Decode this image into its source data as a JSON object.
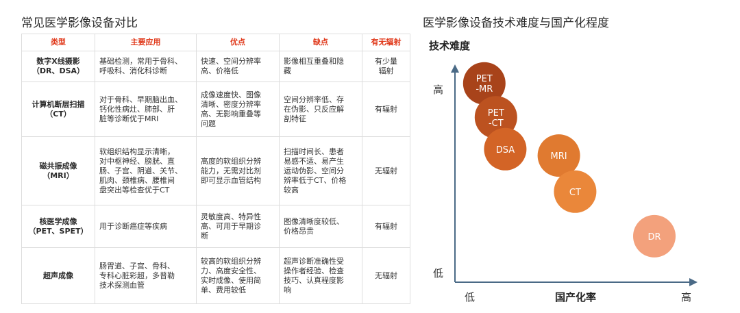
{
  "table_title": "常见医学影像设备对比",
  "chart_title": "医学影像设备技术难度与国产化程度",
  "table": {
    "headers": [
      "类型",
      "主要应用",
      "优点",
      "缺点",
      "有无辐射"
    ],
    "rows": [
      {
        "type": "数字X线摄影\n（DR、DSA）",
        "application": "基础检测，常用于骨科、\n呼吸科、消化科诊断",
        "advantages": "快速、空间分辨率\n高、价格低",
        "disadvantages": "影像相互重叠和隐\n藏",
        "radiation": "有少量\n辐射"
      },
      {
        "type": "计算机断层扫描\n（CT）",
        "application": "对于骨科、早期脑出血、\n钙化性病灶、肺部、肝\n脏等诊断优于MRI",
        "advantages": "成像速度快、图像\n清晰、密度分辨率\n高、无影响重叠等\n问题",
        "disadvantages": "空间分辨率低、存\n在伪影、只反应解\n剖特征",
        "radiation": "有辐射"
      },
      {
        "type": "磁共振成像\n（MRI）",
        "application": "软组织结构显示清晰，\n对中枢神经、膀胱、直\n肠、子宫、阴道、关节、\n肌肉、颈椎病、腰椎间\n盘突出等检查优于CT",
        "advantages": "高度的软组织分辨\n能力，无需对比剂\n即可显示血管结构",
        "disadvantages": "扫描时间长、患者\n易感不适、易产生\n运动伪影、空间分\n辨率低于CT、价格\n较高",
        "radiation": "无辐射"
      },
      {
        "type": "核医学成像\n（PET、SPET）",
        "application": "用于诊断癌症等疾病",
        "advantages": "灵敏度高、特异性\n高、可用于早期诊\n断",
        "disadvantages": "图像清晰度较低、\n价格昂贵",
        "radiation": "有辐射"
      },
      {
        "type": "超声成像",
        "application": "肠胃道、子宫、骨科、\n专科心脏彩超，多普勒\n技术探测血管",
        "advantages": "较高的软组织分辨\n力、高度安全性、\n实时成像、使用简\n单、费用较低",
        "disadvantages": "超声诊断准确性受\n操作者经验、检查\n技巧、认真程度影\n响",
        "radiation": "无辐射"
      }
    ]
  },
  "chart_data": {
    "type": "scatter",
    "title": "医学影像设备技术难度与国产化程度",
    "ylabel": "技术难度",
    "xlabel": "国产化率",
    "x_low_label": "低",
    "x_high_label": "高",
    "y_low_label": "低",
    "y_high_label": "高",
    "xlim": [
      0,
      1
    ],
    "ylim": [
      0,
      1
    ],
    "points": [
      {
        "label": "PET\n-MR",
        "x": 0.12,
        "y": 0.93,
        "color": "#a8431a"
      },
      {
        "label": "PET\n-CT",
        "x": 0.17,
        "y": 0.77,
        "color": "#bc5220"
      },
      {
        "label": "DSA",
        "x": 0.21,
        "y": 0.62,
        "color": "#d36426"
      },
      {
        "label": "MRI",
        "x": 0.44,
        "y": 0.59,
        "color": "#e07a30"
      },
      {
        "label": "CT",
        "x": 0.51,
        "y": 0.42,
        "color": "#ea873a"
      },
      {
        "label": "DR",
        "x": 0.85,
        "y": 0.21,
        "color": "#f3a17c"
      }
    ]
  }
}
